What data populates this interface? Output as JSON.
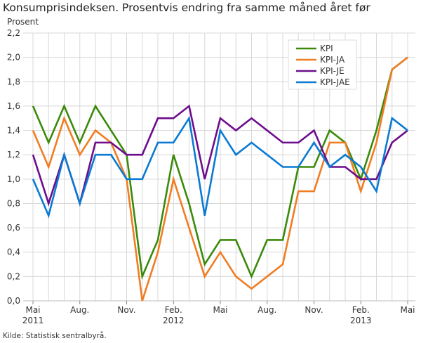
{
  "chart_data": {
    "type": "line",
    "title": "Konsumprisindeksen. Prosentvis endring fra samme måned året før",
    "ylabel": "Prosent",
    "source": "Kilde: Statistisk sentralbyrå.",
    "ylim": [
      0,
      2.2
    ],
    "yticks": [
      "0,0",
      "0,2",
      "0,4",
      "0,6",
      "0,8",
      "1,0",
      "1,2",
      "1,4",
      "1,6",
      "1,8",
      "2,0",
      "2,2"
    ],
    "x": [
      "Mai 2011",
      "Jun 2011",
      "Jul 2011",
      "Aug 2011",
      "Sep 2011",
      "Okt 2011",
      "Nov 2011",
      "Des 2011",
      "Jan 2012",
      "Feb 2012",
      "Mar 2012",
      "Apr 2012",
      "Mai 2012",
      "Jun 2012",
      "Jul 2012",
      "Aug 2012",
      "Sep 2012",
      "Okt 2012",
      "Nov 2012",
      "Des 2012",
      "Jan 2013",
      "Feb 2013",
      "Mar 2013",
      "Apr 2013",
      "Mai 2013"
    ],
    "xticks": [
      {
        "index": 0,
        "label": "Mai",
        "year": "2011"
      },
      {
        "index": 3,
        "label": "Aug.",
        "year": ""
      },
      {
        "index": 6,
        "label": "Nov.",
        "year": ""
      },
      {
        "index": 9,
        "label": "Feb.",
        "year": "2012"
      },
      {
        "index": 12,
        "label": "Mai",
        "year": ""
      },
      {
        "index": 15,
        "label": "Aug.",
        "year": ""
      },
      {
        "index": 18,
        "label": "Nov.",
        "year": ""
      },
      {
        "index": 21,
        "label": "Feb.",
        "year": "2013"
      },
      {
        "index": 24,
        "label": "Mai",
        "year": ""
      }
    ],
    "grid": true,
    "legend": "top-right",
    "series": [
      {
        "name": "KPI",
        "color": "#3a8a0a",
        "values": [
          1.6,
          1.3,
          1.6,
          1.3,
          1.6,
          1.4,
          1.2,
          0.2,
          0.5,
          1.2,
          0.8,
          0.3,
          0.5,
          0.5,
          0.2,
          0.5,
          0.5,
          1.1,
          1.1,
          1.4,
          1.3,
          1.0,
          1.4,
          1.9,
          2.0
        ]
      },
      {
        "name": "KPI-JA",
        "color": "#f07d23",
        "values": [
          1.4,
          1.1,
          1.5,
          1.2,
          1.4,
          1.3,
          1.0,
          0.0,
          0.4,
          1.0,
          0.6,
          0.2,
          0.4,
          0.2,
          0.1,
          0.2,
          0.3,
          0.9,
          0.9,
          1.3,
          1.3,
          0.9,
          1.3,
          1.9,
          2.0
        ]
      },
      {
        "name": "KPI-JE",
        "color": "#6d0d8c",
        "values": [
          1.2,
          0.8,
          1.2,
          0.8,
          1.3,
          1.3,
          1.2,
          1.2,
          1.5,
          1.5,
          1.6,
          1.0,
          1.5,
          1.4,
          1.5,
          1.4,
          1.3,
          1.3,
          1.4,
          1.1,
          1.1,
          1.0,
          1.0,
          1.3,
          1.4
        ]
      },
      {
        "name": "KPI-JAE",
        "color": "#0a7ad2",
        "values": [
          1.0,
          0.7,
          1.2,
          0.8,
          1.2,
          1.2,
          1.0,
          1.0,
          1.3,
          1.3,
          1.5,
          0.7,
          1.4,
          1.2,
          1.3,
          1.2,
          1.1,
          1.1,
          1.3,
          1.1,
          1.2,
          1.1,
          0.9,
          1.5,
          1.4
        ]
      }
    ]
  }
}
